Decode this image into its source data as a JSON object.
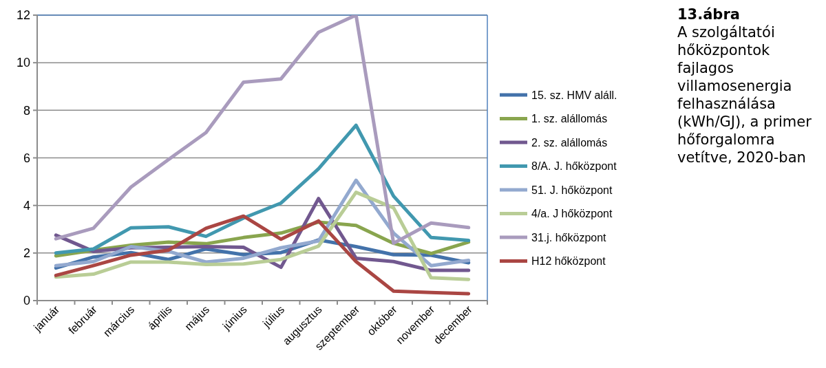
{
  "chart_data": {
    "type": "line",
    "title": "13.ábra",
    "subtitle": "A szolgáltatói hőközpontok fajlagos villamosenergia felhasználása (kWh/GJ), a primer hőforgalomra vetítve, 2020-ban",
    "categories": [
      "január",
      "február",
      "március",
      "április",
      "május",
      "június",
      "július",
      "augusztus",
      "szeptember",
      "október",
      "november",
      "december"
    ],
    "ylim": [
      0,
      12
    ],
    "yticks": [
      0,
      2,
      4,
      6,
      8,
      10,
      12
    ],
    "grid": "y",
    "legend": "right",
    "marker": "none",
    "line_style": "solid",
    "series": [
      {
        "name": "15. sz. HMV aláll.",
        "color": "#4372aa",
        "values": [
          1.37,
          1.83,
          2.02,
          1.73,
          2.17,
          1.93,
          2.02,
          2.55,
          2.27,
          1.93,
          1.91,
          1.59
        ]
      },
      {
        "name": "1. sz. alállomás",
        "color": "#89a54e",
        "values": [
          1.88,
          2.12,
          2.33,
          2.46,
          2.39,
          2.65,
          2.84,
          3.3,
          3.16,
          2.41,
          1.98,
          2.46
        ]
      },
      {
        "name": "2. sz. alállomás",
        "color": "#71588f",
        "values": [
          2.75,
          2.07,
          2.22,
          2.24,
          2.27,
          2.24,
          1.4,
          4.29,
          1.78,
          1.64,
          1.27,
          1.27
        ]
      },
      {
        "name": "8/A. J. hőközpont",
        "color": "#4198af",
        "values": [
          2.0,
          2.17,
          3.06,
          3.1,
          2.7,
          3.47,
          4.1,
          5.54,
          7.37,
          4.39,
          2.65,
          2.53
        ]
      },
      {
        "name": "51. J. hőközpont",
        "color": "#93a9cf",
        "values": [
          1.47,
          1.64,
          2.27,
          2.07,
          1.62,
          1.78,
          2.22,
          2.51,
          5.06,
          2.84,
          1.47,
          1.69
        ]
      },
      {
        "name": "4/a. J hőközpont",
        "color": "#b9cd96",
        "values": [
          0.99,
          1.11,
          1.62,
          1.62,
          1.52,
          1.54,
          1.73,
          2.29,
          4.55,
          3.9,
          0.96,
          0.89
        ]
      },
      {
        "name": "31.j. hőközpont",
        "color": "#a99bbd",
        "values": [
          2.6,
          3.04,
          4.77,
          5.93,
          7.06,
          9.18,
          9.32,
          11.28,
          12,
          2.41,
          3.26,
          3.07
        ]
      },
      {
        "name": "H12 hőközpont",
        "color": "#aa4643",
        "values": [
          1.06,
          1.47,
          1.91,
          2.12,
          3.04,
          3.55,
          2.58,
          3.35,
          1.64,
          0.4,
          0.34,
          0.29
        ]
      }
    ]
  }
}
